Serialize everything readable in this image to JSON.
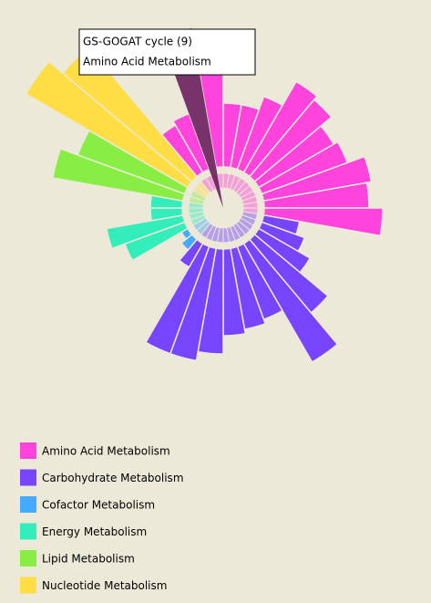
{
  "chart_data": {
    "type": "radial_bar",
    "tooltip": {
      "title": "GS-GOGAT cycle (9)",
      "subtitle": "Amino Acid Metabolism"
    },
    "highlighted": 34,
    "highlight_color": "#6b1f5e",
    "series": [
      {
        "name": "Amino Acid Metabolism",
        "color": "#ff44dd",
        "values": [
          70,
          70,
          85,
          115,
          110,
          95,
          100,
          120,
          115,
          130,
          null,
          null,
          null,
          null,
          null,
          null,
          null,
          null,
          null,
          null,
          null,
          null,
          null,
          null,
          null,
          null,
          null,
          null,
          null,
          null,
          null,
          null,
          60,
          65,
          155,
          105
        ]
      },
      {
        "name": "Carbohydrate Metabolism",
        "color": "#7744ff",
        "values": [
          null,
          null,
          null,
          null,
          null,
          null,
          null,
          null,
          null,
          null,
          40,
          50,
          65,
          105,
          150,
          85,
          90,
          95,
          115,
          125,
          125,
          30,
          null,
          null,
          null,
          null,
          null,
          null,
          null,
          null,
          null,
          null,
          null,
          null,
          null,
          null
        ]
      },
      {
        "name": "Cofactor Metabolism",
        "color": "#44aaff",
        "values": [
          null,
          null,
          null,
          null,
          null,
          null,
          null,
          null,
          null,
          null,
          null,
          null,
          null,
          null,
          null,
          null,
          null,
          null,
          null,
          null,
          null,
          null,
          15,
          8,
          null,
          null,
          null,
          null,
          null,
          null,
          null,
          null,
          null,
          null,
          null,
          null
        ]
      },
      {
        "name": "Energy Metabolism",
        "color": "#33eebb",
        "values": [
          null,
          null,
          null,
          null,
          null,
          null,
          null,
          null,
          null,
          null,
          null,
          null,
          null,
          null,
          null,
          null,
          null,
          null,
          null,
          null,
          null,
          null,
          null,
          null,
          70,
          85,
          35,
          35,
          null,
          null,
          null,
          null,
          null,
          null,
          null,
          null
        ]
      },
      {
        "name": "Lipid Metabolism",
        "color": "#88ee44",
        "values": [
          null,
          null,
          null,
          null,
          null,
          null,
          null,
          null,
          null,
          null,
          null,
          null,
          null,
          null,
          null,
          null,
          null,
          null,
          null,
          null,
          null,
          null,
          null,
          null,
          null,
          null,
          null,
          null,
          145,
          125,
          null,
          null,
          null,
          null,
          null,
          null
        ]
      },
      {
        "name": "Nucleotide Metabolism",
        "color": "#ffdd44",
        "values": [
          null,
          null,
          null,
          null,
          null,
          null,
          null,
          null,
          null,
          null,
          null,
          null,
          null,
          null,
          null,
          null,
          null,
          null,
          null,
          null,
          null,
          null,
          null,
          null,
          null,
          null,
          null,
          null,
          null,
          null,
          205,
          185,
          null,
          null,
          null,
          null
        ]
      }
    ]
  }
}
